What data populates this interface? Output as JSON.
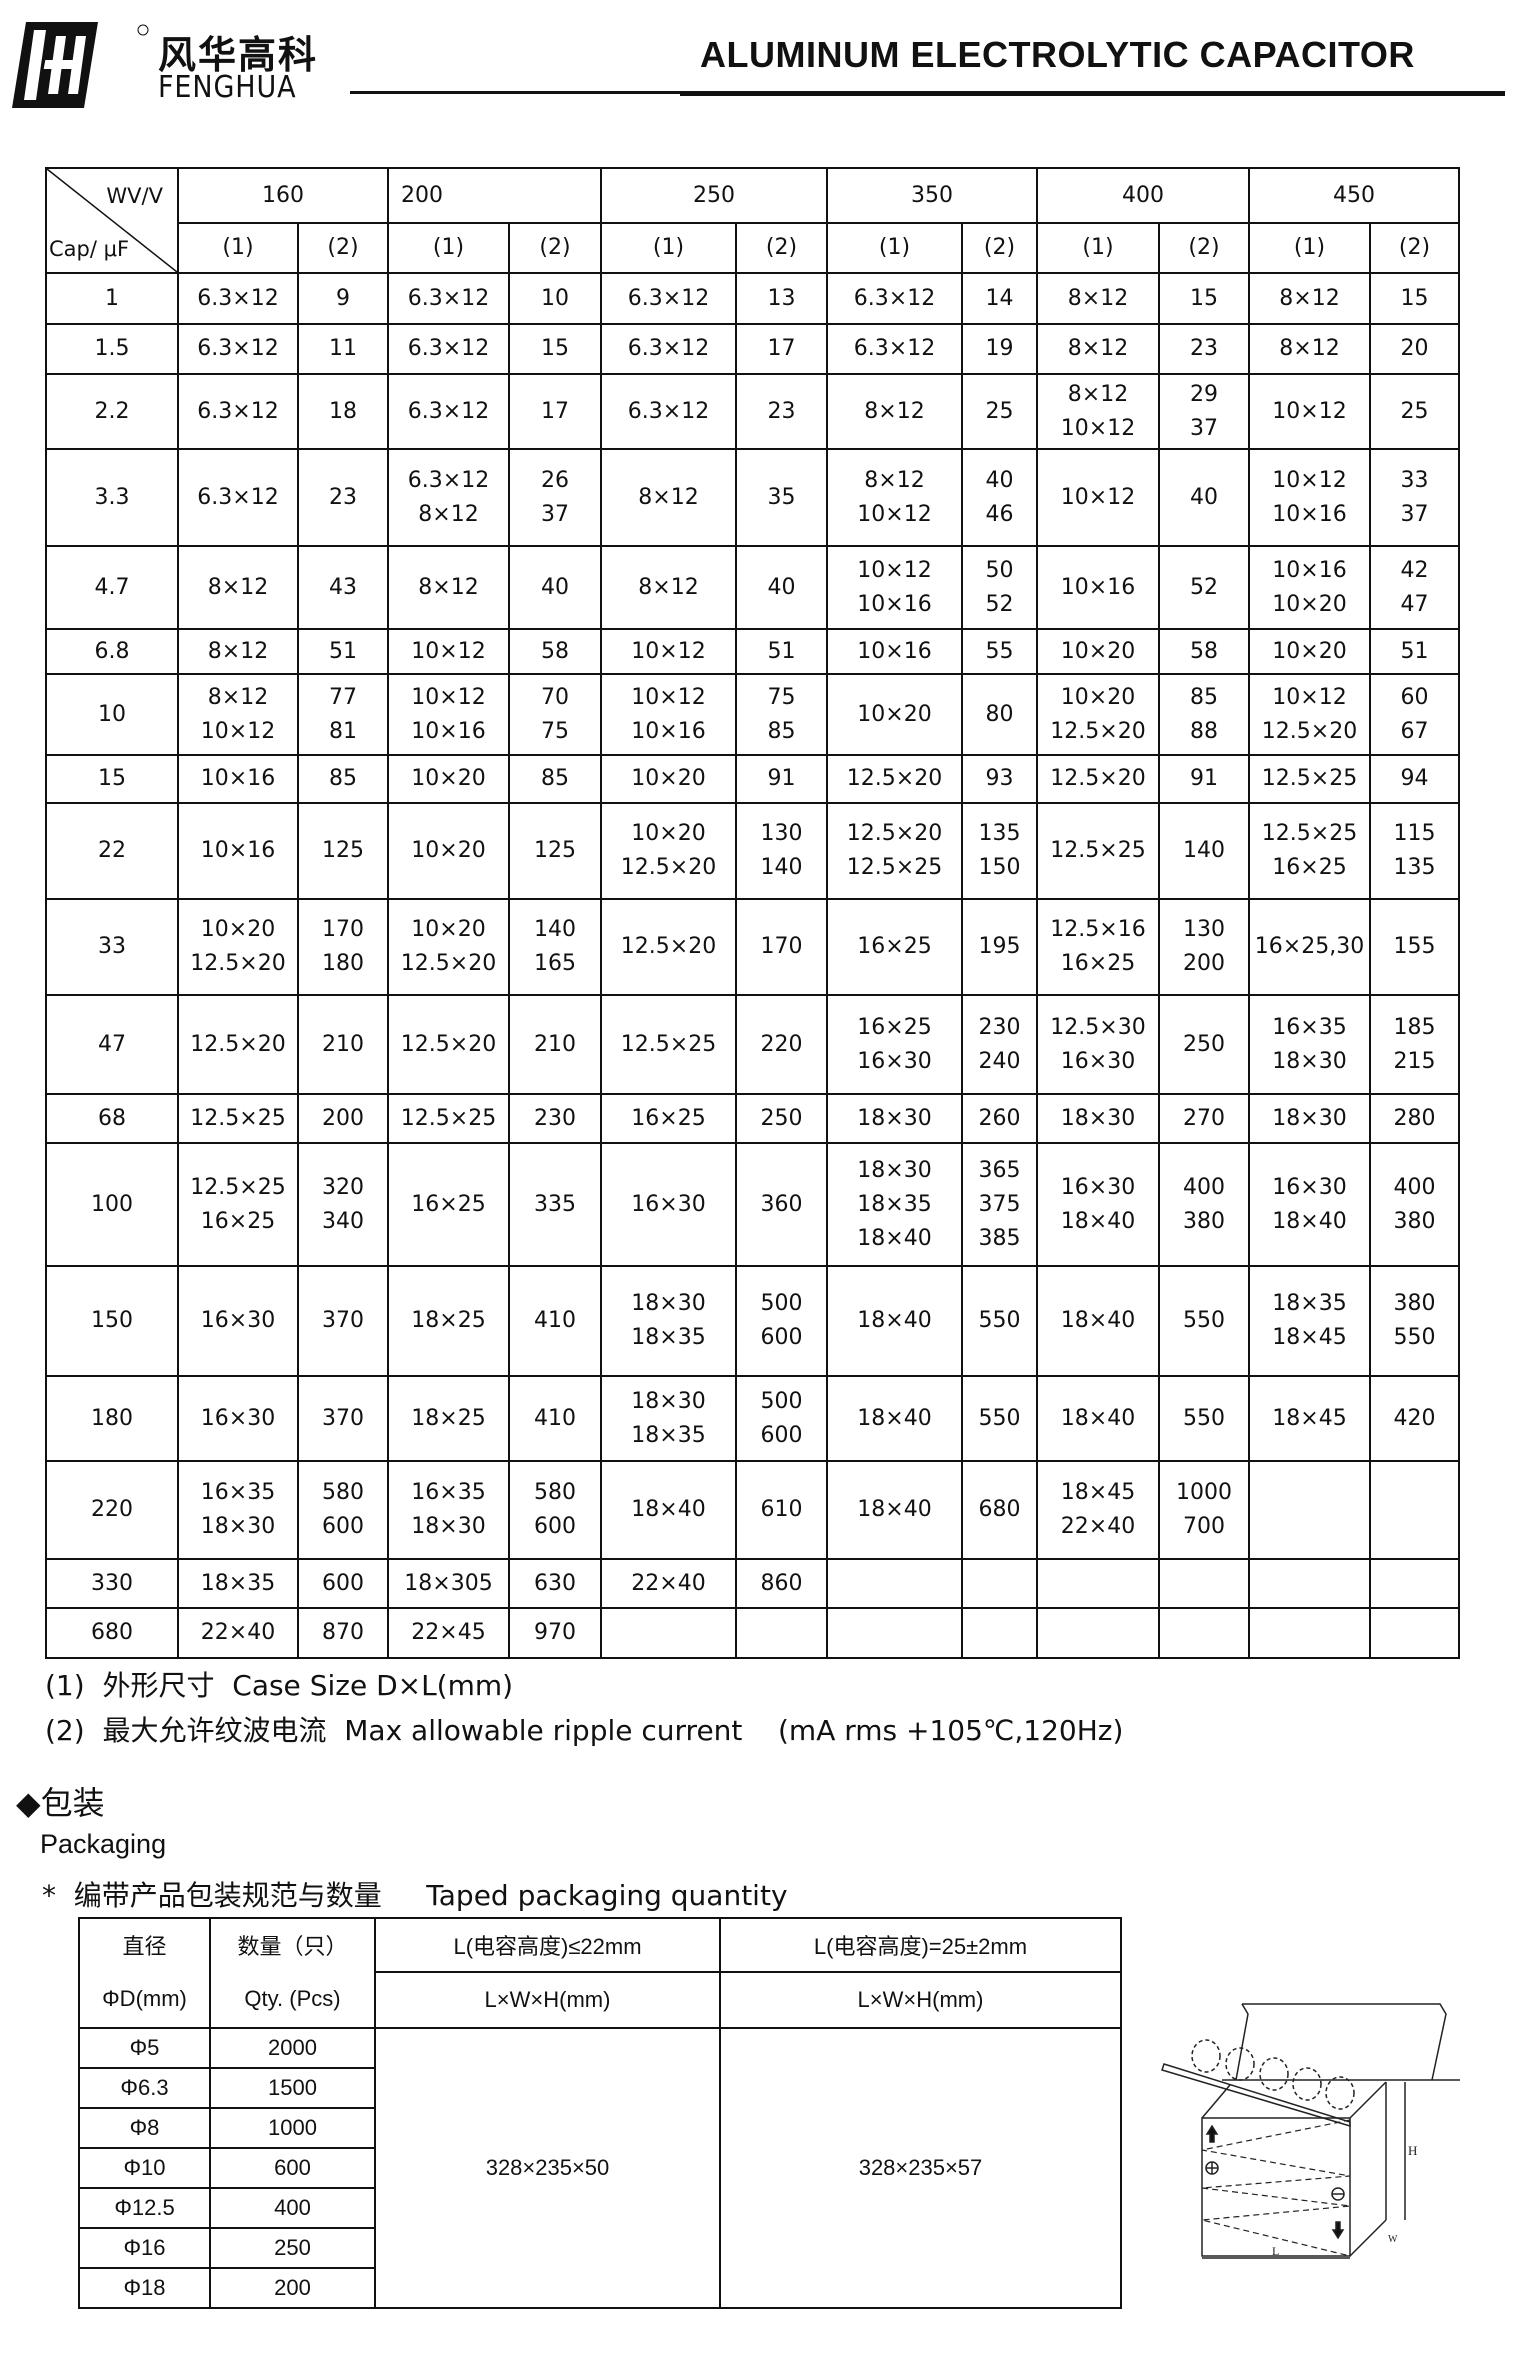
{
  "header": {
    "logo_cn": "风华高科",
    "logo_en": "FENGHUA",
    "title": "ALUMINUM ELECTROLYTIC CAPACITOR"
  },
  "spec": {
    "corner_top": "WV/V",
    "corner_bottom": "Cap/ μF",
    "voltages": [
      "160",
      "200",
      "250",
      "350",
      "400",
      "450"
    ],
    "sub": [
      "(1)",
      "(2)"
    ],
    "rows": [
      {
        "cap": "1",
        "cells": [
          "6.3×12",
          "9",
          "6.3×12",
          "10",
          "6.3×12",
          "13",
          "6.3×12",
          "14",
          "8×12",
          "15",
          "8×12",
          "15"
        ]
      },
      {
        "cap": "1.5",
        "cells": [
          "6.3×12",
          "11",
          "6.3×12",
          "15",
          "6.3×12",
          "17",
          "6.3×12",
          "19",
          "8×12",
          "23",
          "8×12",
          "20"
        ]
      },
      {
        "cap": "2.2",
        "cells": [
          "6.3×12",
          "18",
          "6.3×12",
          "17",
          "6.3×12",
          "23",
          "8×12",
          "25",
          "8×12\n10×12",
          "29\n37",
          "10×12",
          "25"
        ]
      },
      {
        "cap": "3.3",
        "cells": [
          "6.3×12",
          "23",
          "6.3×12\n8×12",
          "26\n37",
          "8×12",
          "35",
          "8×12\n10×12",
          "40\n46",
          "10×12",
          "40",
          "10×12\n10×16",
          "33\n37"
        ]
      },
      {
        "cap": "4.7",
        "cells": [
          "8×12",
          "43",
          "8×12",
          "40",
          "8×12",
          "40",
          "10×12\n10×16",
          "50\n52",
          "10×16",
          "52",
          "10×16\n10×20",
          "42\n47"
        ]
      },
      {
        "cap": "6.8",
        "cells": [
          "8×12",
          "51",
          "10×12",
          "58",
          "10×12",
          "51",
          "10×16",
          "55",
          "10×20",
          "58",
          "10×20",
          "51"
        ]
      },
      {
        "cap": "10",
        "cells": [
          "8×12\n10×12",
          "77\n81",
          "10×12\n10×16",
          "70\n75",
          "10×12\n10×16",
          "75\n85",
          "10×20",
          "80",
          "10×20\n12.5×20",
          "85\n88",
          "10×12\n12.5×20",
          "60\n67"
        ]
      },
      {
        "cap": "15",
        "cells": [
          "10×16",
          "85",
          "10×20",
          "85",
          "10×20",
          "91",
          "12.5×20",
          "93",
          "12.5×20",
          "91",
          "12.5×25",
          "94"
        ]
      },
      {
        "cap": "22",
        "cells": [
          "10×16",
          "125",
          "10×20",
          "125",
          "10×20\n12.5×20",
          "130\n140",
          "12.5×20\n12.5×25",
          "135\n150",
          "12.5×25",
          "140",
          "12.5×25\n16×25",
          "115\n135"
        ]
      },
      {
        "cap": "33",
        "cells": [
          "10×20\n12.5×20",
          "170\n180",
          "10×20\n12.5×20",
          "140\n165",
          "12.5×20",
          "170",
          "16×25",
          "195",
          "12.5×16\n16×25",
          "130\n200",
          "16×25,30",
          "155"
        ]
      },
      {
        "cap": "47",
        "cells": [
          "12.5×20",
          "210",
          "12.5×20",
          "210",
          "12.5×25",
          "220",
          "16×25\n16×30",
          "230\n240",
          "12.5×30\n16×30",
          "250",
          "16×35\n18×30",
          "185\n215"
        ]
      },
      {
        "cap": "68",
        "cells": [
          "12.5×25",
          "200",
          "12.5×25",
          "230",
          "16×25",
          "250",
          "18×30",
          "260",
          "18×30",
          "270",
          "18×30",
          "280"
        ]
      },
      {
        "cap": "100",
        "cells": [
          "12.5×25\n16×25",
          "320\n340",
          "16×25",
          "335",
          "16×30",
          "360",
          "18×30\n18×35\n18×40",
          "365\n375\n385",
          "16×30\n18×40",
          "400\n380",
          "16×30\n18×40",
          "400\n380"
        ]
      },
      {
        "cap": "150",
        "cells": [
          "16×30",
          "370",
          "18×25",
          "410",
          "18×30\n18×35",
          "500\n600",
          "18×40",
          "550",
          "18×40",
          "550",
          "18×35\n18×45",
          "380\n550"
        ]
      },
      {
        "cap": "180",
        "cells": [
          "16×30",
          "370",
          "18×25",
          "410",
          "18×30\n18×35",
          "500\n600",
          "18×40",
          "550",
          "18×40",
          "550",
          "18×45",
          "420"
        ]
      },
      {
        "cap": "220",
        "cells": [
          "16×35\n18×30",
          "580\n600",
          "16×35\n18×30",
          "580\n600",
          "18×40",
          "610",
          "18×40",
          "680",
          "18×45\n22×40",
          "1000\n700",
          "",
          ""
        ]
      },
      {
        "cap": "330",
        "cells": [
          "18×35",
          "600",
          "18×305",
          "630",
          "22×40",
          "860",
          "",
          "",
          "",
          "",
          "",
          ""
        ]
      },
      {
        "cap": "680",
        "cells": [
          "22×40",
          "870",
          "22×45",
          "970",
          "",
          "",
          "",
          "",
          "",
          "",
          "",
          ""
        ]
      }
    ]
  },
  "notes": {
    "n1": "(1)  外形尺寸  Case Size D×L(mm)",
    "n2": "(2)  最大允许纹波电流  Max allowable ripple current    (mA rms +105℃,120Hz)"
  },
  "packaging": {
    "heading": "◆包装",
    "heading_en": "Packaging",
    "subheading": "*  编带产品包装规范与数量     Taped packaging quantity",
    "col_dia_cn": "直径",
    "col_dia_en": "ΦD(mm)",
    "col_qty_cn": "数量（只）",
    "col_qty_en": "Qty. (Pcs)",
    "col_a": "L(电容高度)≤22mm",
    "col_b": "L(电容高度)=25±2mm",
    "dim_label_a": "L×W×H(mm)",
    "dim_label_b": "L×W×H(mm)",
    "box_a": "328×235×50",
    "box_b": "328×235×57",
    "rows": [
      {
        "dia": "Φ5",
        "qty": "2000"
      },
      {
        "dia": "Φ6.3",
        "qty": "1500"
      },
      {
        "dia": "Φ8",
        "qty": "1000"
      },
      {
        "dia": "Φ10",
        "qty": "600"
      },
      {
        "dia": "Φ12.5",
        "qty": "400"
      },
      {
        "dia": "Φ16",
        "qty": "250"
      },
      {
        "dia": "Φ18",
        "qty": "200"
      }
    ],
    "diagram": {
      "label_l": "L",
      "label_w": "W",
      "label_h": "H"
    }
  }
}
